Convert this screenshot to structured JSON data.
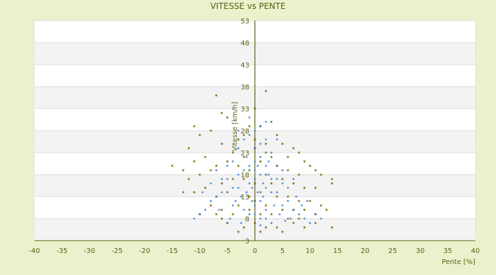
{
  "chart_data": {
    "type": "scatter",
    "title": "VITESSE vs PENTE",
    "xlabel": "Pente [%]",
    "ylabel": "Vitesse [km/h]",
    "xlim": [
      -40,
      40
    ],
    "ylim": [
      3,
      53
    ],
    "xticks": [
      -40,
      -35,
      -30,
      -25,
      -20,
      -15,
      -10,
      -5,
      0,
      5,
      10,
      15,
      20,
      25,
      30,
      35,
      40
    ],
    "yticks": [
      3,
      8,
      13,
      18,
      23,
      28,
      33,
      38,
      43,
      48,
      53
    ],
    "grid": "horizontal alternating bands",
    "legend": "none",
    "colors": {
      "series_olive": "#6b6b00",
      "series_blue": "#3a86d6",
      "axis": "#5a6010",
      "background": "#ebf1cd",
      "band": "#f3f3f3"
    },
    "series": [
      {
        "color": "#6b6b00",
        "marker": "x",
        "points": [
          [
            -7,
            36
          ],
          [
            2,
            37
          ],
          [
            -6,
            32
          ],
          [
            0,
            33
          ],
          [
            -11,
            29
          ],
          [
            -5,
            31
          ],
          [
            3,
            30
          ],
          [
            -8,
            28
          ],
          [
            1,
            29
          ],
          [
            -2,
            27
          ],
          [
            4,
            27
          ],
          [
            -10,
            27
          ],
          [
            -6,
            25
          ],
          [
            5,
            25
          ],
          [
            7,
            24
          ],
          [
            -12,
            24
          ],
          [
            -3,
            26
          ],
          [
            2,
            25
          ],
          [
            6,
            22
          ],
          [
            8,
            23
          ],
          [
            -9,
            22
          ],
          [
            -4,
            23
          ],
          [
            0,
            24
          ],
          [
            3,
            22
          ],
          [
            -15,
            20
          ],
          [
            -13,
            19
          ],
          [
            -11,
            21
          ],
          [
            -7,
            20
          ],
          [
            9,
            21
          ],
          [
            10,
            20
          ],
          [
            11,
            19
          ],
          [
            14,
            17
          ],
          [
            14,
            16
          ],
          [
            12,
            18
          ],
          [
            -12,
            17
          ],
          [
            -10,
            18
          ],
          [
            -8,
            19
          ],
          [
            -5,
            21
          ],
          [
            4,
            20
          ],
          [
            6,
            19
          ],
          [
            8,
            18
          ],
          [
            -3,
            20
          ],
          [
            1,
            21
          ],
          [
            -1,
            19
          ],
          [
            2,
            18
          ],
          [
            5,
            17
          ],
          [
            7,
            16
          ],
          [
            -6,
            16
          ],
          [
            -4,
            17
          ],
          [
            -2,
            17
          ],
          [
            0,
            16
          ],
          [
            3,
            16
          ],
          [
            9,
            15
          ],
          [
            11,
            15
          ],
          [
            -9,
            15
          ],
          [
            -11,
            14
          ],
          [
            -13,
            14
          ],
          [
            -7,
            13
          ],
          [
            -5,
            14
          ],
          [
            4,
            13
          ],
          [
            6,
            13
          ],
          [
            8,
            12
          ],
          [
            10,
            12
          ],
          [
            12,
            11
          ],
          [
            -8,
            11
          ],
          [
            -6,
            10
          ],
          [
            -3,
            11
          ],
          [
            0,
            12
          ],
          [
            2,
            11
          ],
          [
            5,
            10
          ],
          [
            7,
            10
          ],
          [
            9,
            10
          ],
          [
            11,
            9
          ],
          [
            13,
            10
          ],
          [
            -10,
            9
          ],
          [
            -7,
            9
          ],
          [
            -4,
            9
          ],
          [
            -1,
            10
          ],
          [
            1,
            9
          ],
          [
            3,
            9
          ],
          [
            6,
            8
          ],
          [
            8,
            8
          ],
          [
            11,
            7
          ],
          [
            14,
            6
          ],
          [
            -5,
            7
          ],
          [
            -2,
            6
          ],
          [
            0,
            7
          ],
          [
            2,
            6
          ],
          [
            4,
            6
          ],
          [
            7,
            7
          ],
          [
            -3,
            5
          ],
          [
            1,
            5
          ],
          [
            9,
            6
          ],
          [
            -6,
            8
          ],
          [
            5,
            5
          ],
          [
            -1,
            13
          ],
          [
            1,
            14
          ],
          [
            -2,
            22
          ],
          [
            2,
            23
          ],
          [
            0,
            26
          ],
          [
            -1,
            29
          ]
        ]
      },
      {
        "color": "#3a86d6",
        "marker": "plus",
        "points": [
          [
            0,
            17
          ],
          [
            1,
            18
          ],
          [
            -1,
            16
          ],
          [
            2,
            15
          ],
          [
            -2,
            19
          ],
          [
            0.5,
            20
          ],
          [
            1.5,
            13
          ],
          [
            -0.5,
            12
          ],
          [
            3,
            17
          ],
          [
            -3,
            18
          ],
          [
            2.5,
            21
          ],
          [
            -1.5,
            22
          ],
          [
            0,
            24
          ],
          [
            1,
            25
          ],
          [
            -2,
            26
          ],
          [
            4,
            14
          ],
          [
            -4,
            15
          ],
          [
            5,
            16
          ],
          [
            -5,
            17
          ],
          [
            3.5,
            11
          ],
          [
            -3.5,
            12
          ],
          [
            2,
            10
          ],
          [
            -2,
            10
          ],
          [
            0,
            9
          ],
          [
            1,
            8
          ],
          [
            6,
            12
          ],
          [
            7,
            10
          ],
          [
            8,
            9
          ],
          [
            -6,
            14
          ],
          [
            -7,
            13
          ],
          [
            -8,
            12
          ],
          [
            -9,
            10
          ],
          [
            -10,
            9
          ],
          [
            9,
            8
          ],
          [
            10,
            7
          ],
          [
            12,
            8
          ],
          [
            -11,
            8
          ],
          [
            0,
            28
          ],
          [
            1,
            29
          ],
          [
            -1,
            27
          ],
          [
            2,
            26
          ],
          [
            3,
            23
          ],
          [
            -3,
            24
          ],
          [
            4,
            20
          ],
          [
            -4,
            21
          ],
          [
            5,
            19
          ],
          [
            -5,
            20
          ],
          [
            6,
            15
          ],
          [
            -6,
            17
          ],
          [
            4.5,
            9
          ],
          [
            -4.5,
            8
          ],
          [
            3,
            7
          ],
          [
            -2.5,
            7
          ],
          [
            0.5,
            14
          ],
          [
            -0.5,
            15
          ],
          [
            1.5,
            16
          ],
          [
            -1.5,
            14
          ],
          [
            2.5,
            18
          ],
          [
            -2.5,
            13
          ],
          [
            0,
            19
          ],
          [
            0,
            11
          ],
          [
            7,
            17
          ],
          [
            -7,
            19
          ],
          [
            6.5,
            8
          ],
          [
            8.5,
            11
          ],
          [
            -8,
            16
          ],
          [
            2,
            30
          ],
          [
            -1,
            31
          ],
          [
            4,
            26
          ],
          [
            -3,
            28
          ],
          [
            1,
            6.5
          ],
          [
            5.5,
            7.5
          ],
          [
            -5,
            7
          ],
          [
            0,
            21
          ],
          [
            1,
            22
          ],
          [
            -1,
            20
          ],
          [
            2,
            20
          ],
          [
            3,
            14
          ],
          [
            -3,
            15
          ],
          [
            4,
            17
          ],
          [
            -4,
            11
          ],
          [
            5,
            11
          ],
          [
            9.5,
            12
          ],
          [
            11,
            9
          ],
          [
            -9.5,
            14
          ],
          [
            7.5,
            13
          ],
          [
            -6.5,
            10
          ],
          [
            1,
            12
          ],
          [
            -1,
            9
          ],
          [
            2,
            8
          ]
        ]
      }
    ]
  }
}
